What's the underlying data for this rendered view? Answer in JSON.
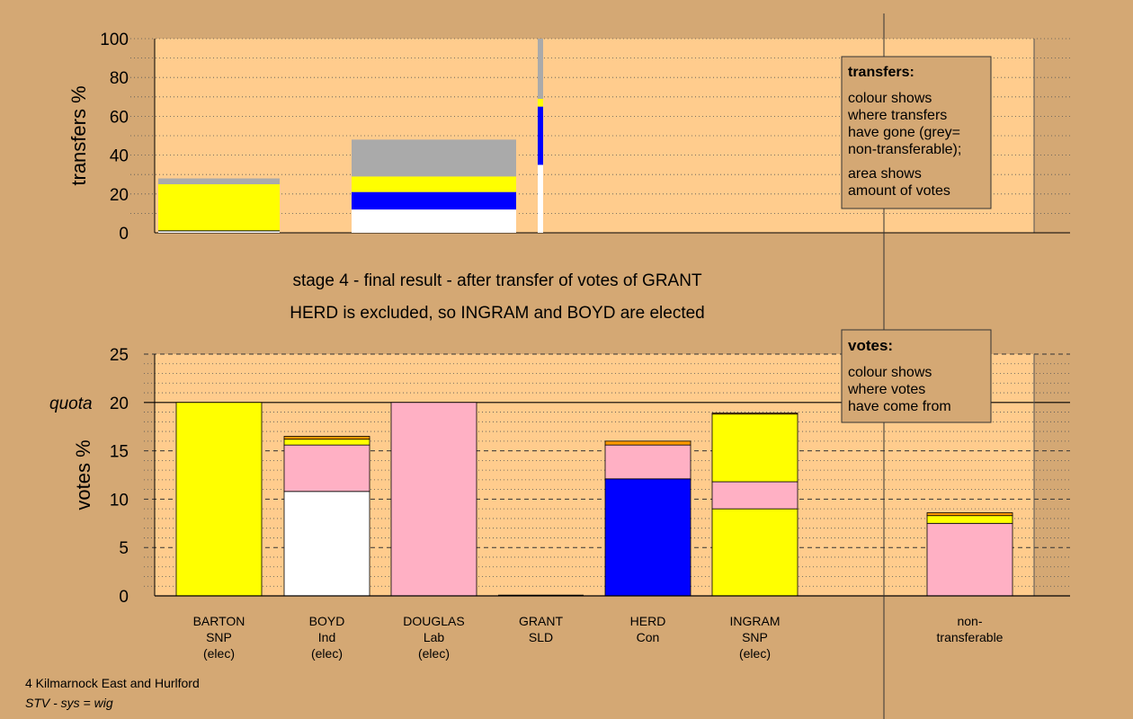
{
  "colors": {
    "background": "#d4a874",
    "plot_bg": "#ffcc8d",
    "SNP": "#ffff00",
    "Ind": "#ffffff",
    "Lab": "#ffb0c4",
    "Con": "#0000ff",
    "SLD": "#ff9900",
    "nontransferable": "#aaaaaa"
  },
  "titles": {
    "line1": "stage 4 - final result - after transfer of votes of GRANT",
    "line2": "HERD is excluded, so INGRAM and BOYD are elected"
  },
  "footer": {
    "line1": "4 Kilmarnock East and Hurlford",
    "line2": "STV - sys = wig"
  },
  "chart_data": [
    {
      "type": "bar",
      "id": "transfers",
      "ylabel": "transfers %",
      "ylim": [
        0,
        100
      ],
      "yticks": [
        0,
        20,
        40,
        60,
        80,
        100
      ],
      "legend": {
        "title": "transfers:",
        "lines": [
          "colour shows",
          "where transfers",
          "have gone (grey=",
          "non-transferable);"
        ],
        "lines2": [
          "area shows",
          "amount of votes"
        ]
      },
      "bars": [
        {
          "segments": [
            {
              "party": "Ind",
              "value": 1
            },
            {
              "party": "SNP",
              "value": 24
            },
            {
              "party": "nontransferable",
              "value": 3
            }
          ]
        },
        {
          "segments": [
            {
              "party": "Ind",
              "value": 12
            },
            {
              "party": "Con",
              "value": 9
            },
            {
              "party": "SNP",
              "value": 8
            },
            {
              "party": "nontransferable",
              "value": 19
            }
          ]
        },
        {
          "segments": [
            {
              "party": "Ind",
              "value": 35
            },
            {
              "party": "Con",
              "value": 30
            },
            {
              "party": "SNP",
              "value": 4
            },
            {
              "party": "nontransferable",
              "value": 31
            }
          ]
        }
      ]
    },
    {
      "type": "bar",
      "id": "votes",
      "ylabel": "votes %",
      "quota_label": "quota",
      "quota": 20,
      "ylim": [
        0,
        25
      ],
      "yticks": [
        0,
        5,
        10,
        15,
        20,
        25
      ],
      "legend": {
        "title": "votes:",
        "lines": [
          "colour shows",
          "where votes",
          "have come from"
        ]
      },
      "candidates": [
        {
          "name": "BARTON",
          "party": "SNP",
          "status": "(elec)",
          "segments": [
            {
              "party": "SNP",
              "value": 20
            }
          ]
        },
        {
          "name": "BOYD",
          "party": "Ind",
          "status": "(elec)",
          "segments": [
            {
              "party": "Ind",
              "value": 10.8
            },
            {
              "party": "Lab",
              "value": 4.8
            },
            {
              "party": "SNP",
              "value": 0.6
            },
            {
              "party": "SLD",
              "value": 0.3
            }
          ]
        },
        {
          "name": "DOUGLAS",
          "party": "Lab",
          "status": "(elec)",
          "segments": [
            {
              "party": "Lab",
              "value": 20
            }
          ]
        },
        {
          "name": "GRANT",
          "party": "SLD",
          "status": "",
          "segments": []
        },
        {
          "name": "HERD",
          "party": "Con",
          "status": "",
          "segments": [
            {
              "party": "Con",
              "value": 12.1
            },
            {
              "party": "Lab",
              "value": 3.5
            },
            {
              "party": "SLD",
              "value": 0.4
            }
          ]
        },
        {
          "name": "INGRAM",
          "party": "SNP",
          "status": "(elec)",
          "segments": [
            {
              "party": "SNP",
              "value": 9.0
            },
            {
              "party": "Lab",
              "value": 2.8
            },
            {
              "party": "SNP",
              "value": 7.0
            },
            {
              "party": "SLD",
              "value": 0.1
            }
          ]
        },
        {
          "name": "non-",
          "party": "transferable",
          "status": "",
          "segments": [
            {
              "party": "Lab",
              "value": 7.5
            },
            {
              "party": "SNP",
              "value": 0.8
            },
            {
              "party": "SLD",
              "value": 0.3
            }
          ]
        }
      ]
    }
  ]
}
